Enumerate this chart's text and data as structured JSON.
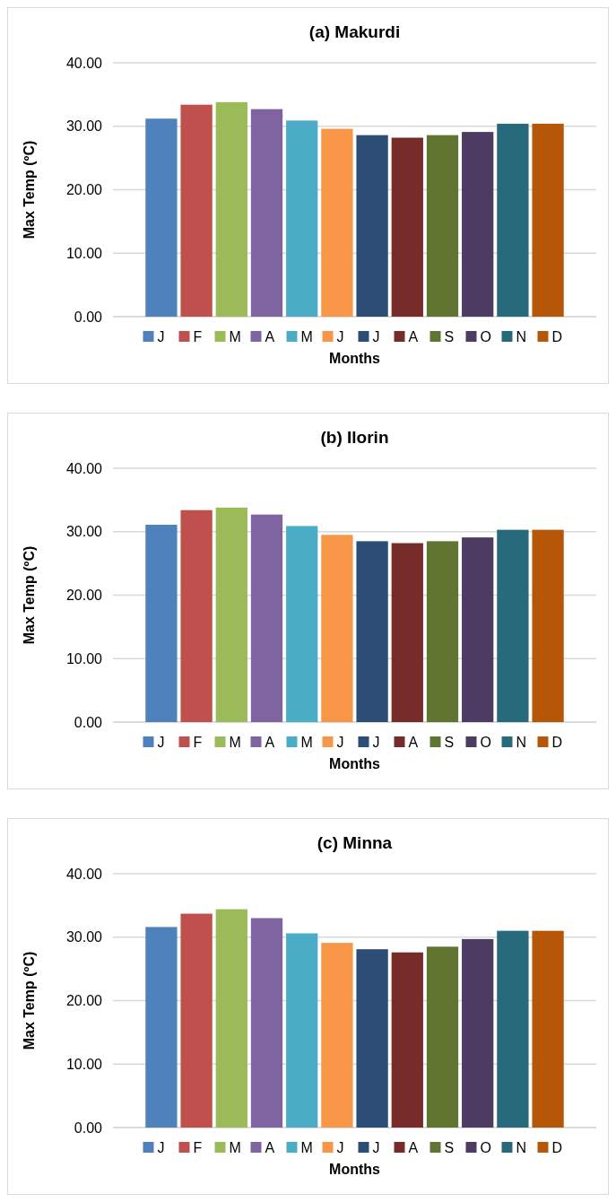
{
  "chart_data": [
    {
      "type": "bar",
      "title": "(a) Makurdi",
      "xlabel": "Months",
      "ylabel": "Max Temp (ºC)",
      "categories": [
        null
      ],
      "ylim": [
        0,
        40
      ],
      "yticks": [
        {
          "value": 0,
          "label": "0.00"
        },
        {
          "value": 10,
          "label": "10.00"
        },
        {
          "value": 20,
          "label": "20.00"
        },
        {
          "value": 30,
          "label": "30.00"
        },
        {
          "value": 40,
          "label": "40.00"
        }
      ],
      "grid": "y",
      "legend": "bottom",
      "series": [
        {
          "name": "J",
          "color": "#4f81bd",
          "values": [
            31.2
          ]
        },
        {
          "name": "F",
          "color": "#c0504d",
          "values": [
            33.4
          ]
        },
        {
          "name": "M",
          "color": "#9bbb59",
          "values": [
            33.8
          ]
        },
        {
          "name": "A",
          "color": "#8064a2",
          "values": [
            32.7
          ]
        },
        {
          "name": "M",
          "color": "#4bacc6",
          "values": [
            30.9
          ]
        },
        {
          "name": "J",
          "color": "#f79646",
          "values": [
            29.6
          ]
        },
        {
          "name": "J",
          "color": "#2c4d75",
          "values": [
            28.6
          ]
        },
        {
          "name": "A",
          "color": "#772c2a",
          "values": [
            28.2
          ]
        },
        {
          "name": "S",
          "color": "#5f7530",
          "values": [
            28.6
          ]
        },
        {
          "name": "O",
          "color": "#4d3b62",
          "values": [
            29.1
          ]
        },
        {
          "name": "N",
          "color": "#276a7c",
          "values": [
            30.4
          ]
        },
        {
          "name": "D",
          "color": "#b65708",
          "values": [
            30.4
          ]
        }
      ]
    },
    {
      "type": "bar",
      "title": "(b) Ilorin",
      "xlabel": "Months",
      "ylabel": "Max Temp (ºC)",
      "categories": [
        null
      ],
      "ylim": [
        0,
        40
      ],
      "yticks": [
        {
          "value": 0,
          "label": "0.00"
        },
        {
          "value": 10,
          "label": "10.00"
        },
        {
          "value": 20,
          "label": "20.00"
        },
        {
          "value": 30,
          "label": "30.00"
        },
        {
          "value": 40,
          "label": "40.00"
        }
      ],
      "grid": "y",
      "legend": "bottom",
      "series": [
        {
          "name": "J",
          "color": "#4f81bd",
          "values": [
            31.1
          ]
        },
        {
          "name": "F",
          "color": "#c0504d",
          "values": [
            33.4
          ]
        },
        {
          "name": "M",
          "color": "#9bbb59",
          "values": [
            33.8
          ]
        },
        {
          "name": "A",
          "color": "#8064a2",
          "values": [
            32.7
          ]
        },
        {
          "name": "M",
          "color": "#4bacc6",
          "values": [
            30.9
          ]
        },
        {
          "name": "J",
          "color": "#f79646",
          "values": [
            29.5
          ]
        },
        {
          "name": "J",
          "color": "#2c4d75",
          "values": [
            28.5
          ]
        },
        {
          "name": "A",
          "color": "#772c2a",
          "values": [
            28.2
          ]
        },
        {
          "name": "S",
          "color": "#5f7530",
          "values": [
            28.5
          ]
        },
        {
          "name": "O",
          "color": "#4d3b62",
          "values": [
            29.1
          ]
        },
        {
          "name": "N",
          "color": "#276a7c",
          "values": [
            30.3
          ]
        },
        {
          "name": "D",
          "color": "#b65708",
          "values": [
            30.3
          ]
        }
      ]
    },
    {
      "type": "bar",
      "title": "(c) Minna",
      "xlabel": "Months",
      "ylabel": "Max Temp (ºC)",
      "categories": [
        null
      ],
      "ylim": [
        0,
        40
      ],
      "yticks": [
        {
          "value": 0,
          "label": "0.00"
        },
        {
          "value": 10,
          "label": "10.00"
        },
        {
          "value": 20,
          "label": "20.00"
        },
        {
          "value": 30,
          "label": "30.00"
        },
        {
          "value": 40,
          "label": "40.00"
        }
      ],
      "grid": "y",
      "legend": "bottom",
      "series": [
        {
          "name": "J",
          "color": "#4f81bd",
          "values": [
            31.6
          ]
        },
        {
          "name": "F",
          "color": "#c0504d",
          "values": [
            33.7
          ]
        },
        {
          "name": "M",
          "color": "#9bbb59",
          "values": [
            34.4
          ]
        },
        {
          "name": "A",
          "color": "#8064a2",
          "values": [
            33.0
          ]
        },
        {
          "name": "M",
          "color": "#4bacc6",
          "values": [
            30.6
          ]
        },
        {
          "name": "J",
          "color": "#f79646",
          "values": [
            29.1
          ]
        },
        {
          "name": "J",
          "color": "#2c4d75",
          "values": [
            28.1
          ]
        },
        {
          "name": "A",
          "color": "#772c2a",
          "values": [
            27.6
          ]
        },
        {
          "name": "S",
          "color": "#5f7530",
          "values": [
            28.5
          ]
        },
        {
          "name": "O",
          "color": "#4d3b62",
          "values": [
            29.7
          ]
        },
        {
          "name": "N",
          "color": "#276a7c",
          "values": [
            31.0
          ]
        },
        {
          "name": "D",
          "color": "#b65708",
          "values": [
            31.0
          ]
        }
      ]
    }
  ]
}
